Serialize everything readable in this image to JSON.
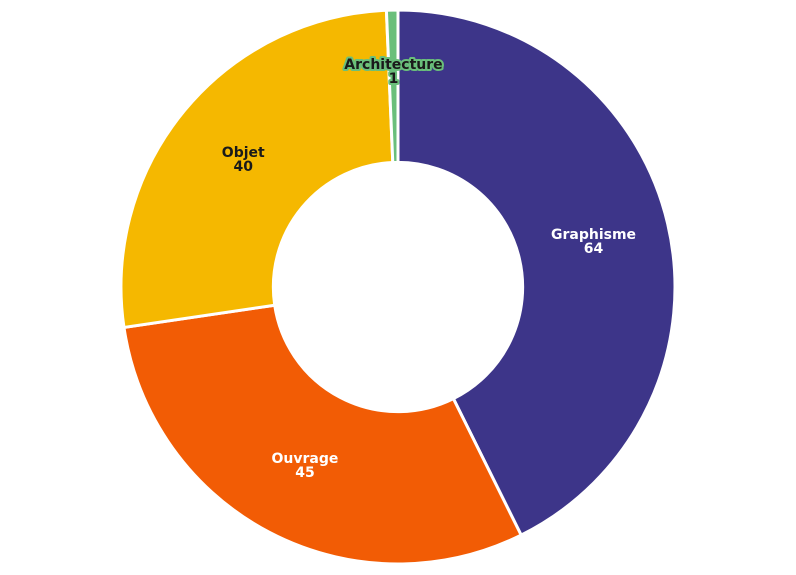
{
  "chart_data": {
    "type": "pie",
    "variant": "donut",
    "start_angle_deg": 0,
    "direction": "clockwise",
    "inner_radius_ratio": 0.45,
    "slices": [
      {
        "label": "Graphisme",
        "value": 64,
        "color": "#3d3589",
        "text_color": "#ffffff"
      },
      {
        "label": "Ouvrage",
        "value": 45,
        "color": "#f25c05",
        "text_color": "#ffffff"
      },
      {
        "label": "Objet",
        "value": 40,
        "color": "#f5b800",
        "text_color": "#1a1a1a"
      },
      {
        "label": "Architecture",
        "value": 1,
        "color": "#6abf7b",
        "text_color": "#1a1a1a"
      }
    ]
  }
}
